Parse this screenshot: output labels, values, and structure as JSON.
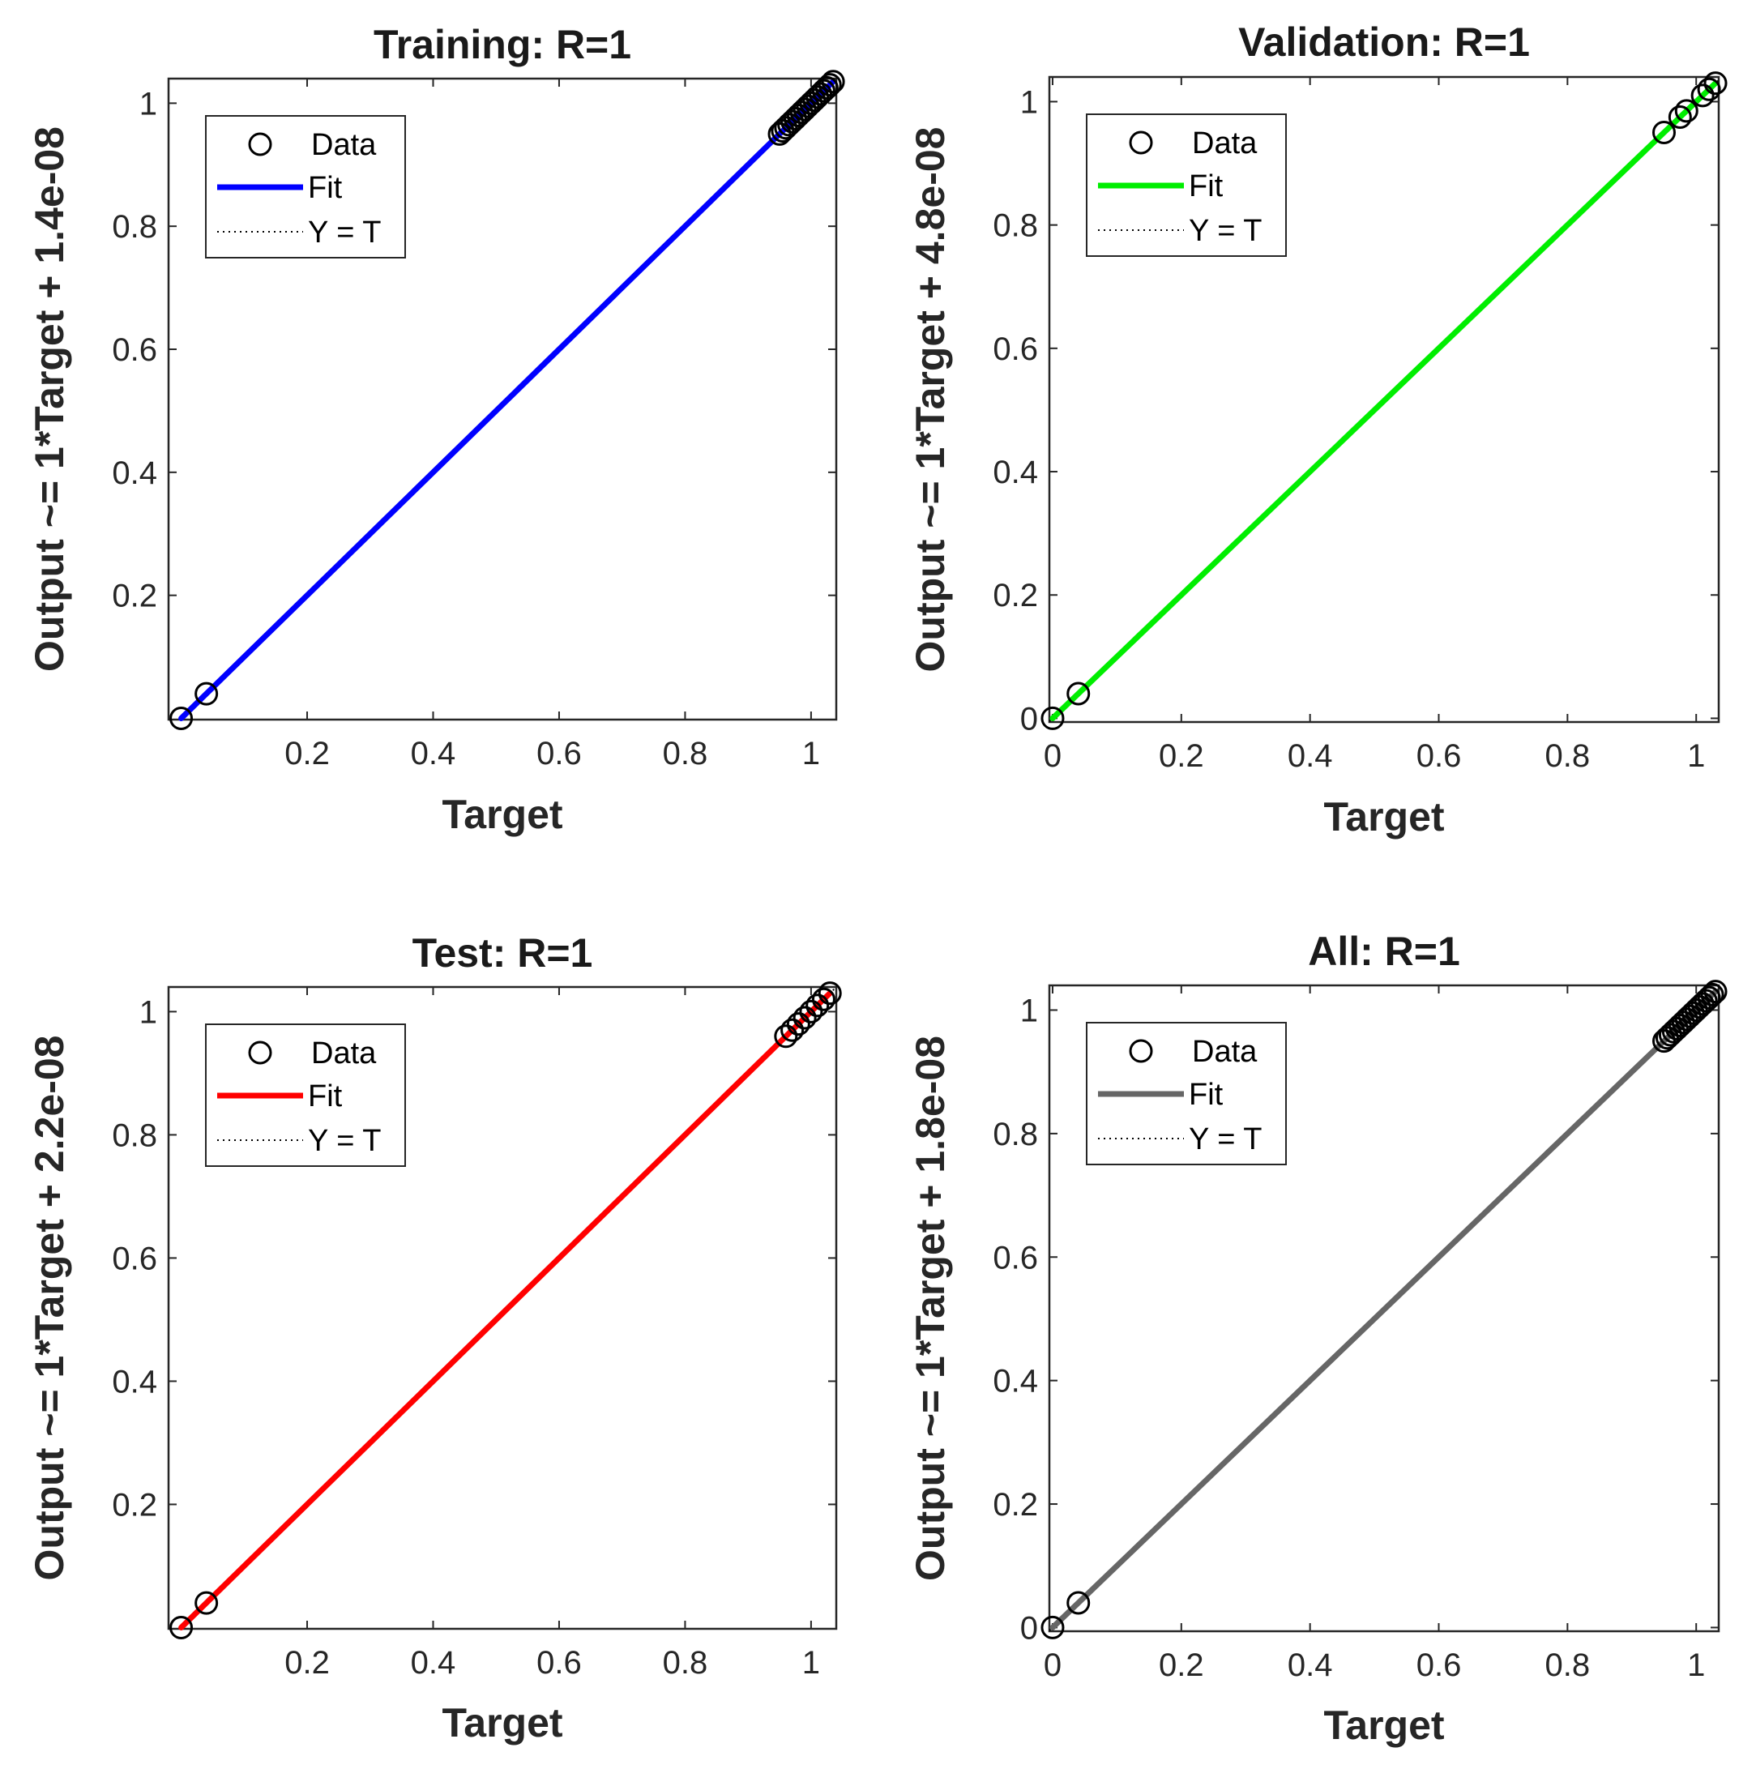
{
  "chart_data": [
    {
      "type": "scatter",
      "title": "Training: R=1",
      "xlabel": "Target",
      "ylabel": "Output ~= 1*Target + 1.4e-08",
      "xlim": [
        -0.02,
        1.04
      ],
      "ylim": [
        -0.002,
        1.04
      ],
      "xticks": [
        0.2,
        0.4,
        0.6,
        0.8,
        1
      ],
      "xtick_labels": [
        "0.2",
        "0.4",
        "0.6",
        "0.8",
        "1"
      ],
      "yticks": [
        0.2,
        0.4,
        0.6,
        0.8,
        1
      ],
      "ytick_labels": [
        "0.2",
        "0.4",
        "0.6",
        "0.8",
        "1"
      ],
      "fit_color": "#0000ff",
      "legend": {
        "position": "top-left",
        "entries": [
          "Data",
          "Fit",
          "Y = T"
        ]
      },
      "fit": {
        "slope": 1,
        "intercept": 1.4e-08
      },
      "points": {
        "x": [
          0,
          0.04,
          0.95,
          0.955,
          0.96,
          0.965,
          0.97,
          0.975,
          0.98,
          0.985,
          0.99,
          0.995,
          1.0,
          1.005,
          1.01,
          1.015,
          1.02,
          1.025,
          1.03,
          1.035
        ],
        "y": [
          0,
          0.04,
          0.95,
          0.955,
          0.96,
          0.965,
          0.97,
          0.975,
          0.98,
          0.985,
          0.99,
          0.995,
          1.0,
          1.005,
          1.01,
          1.015,
          1.02,
          1.025,
          1.03,
          1.035
        ]
      }
    },
    {
      "type": "scatter",
      "title": "Validation: R=1",
      "xlabel": "Target",
      "ylabel": "Output ~= 1*Target + 4.8e-08",
      "xlim": [
        -0.005,
        1.035
      ],
      "ylim": [
        -0.006,
        1.04
      ],
      "xticks": [
        0,
        0.2,
        0.4,
        0.6,
        0.8,
        1
      ],
      "xtick_labels": [
        "0",
        "0.2",
        "0.4",
        "0.6",
        "0.8",
        "1"
      ],
      "yticks": [
        0,
        0.2,
        0.4,
        0.6,
        0.8,
        1
      ],
      "ytick_labels": [
        "0",
        "0.2",
        "0.4",
        "0.6",
        "0.8",
        "1"
      ],
      "fit_color": "#00ee00",
      "legend": {
        "position": "top-left",
        "entries": [
          "Data",
          "Fit",
          "Y = T"
        ]
      },
      "fit": {
        "slope": 1,
        "intercept": 4.8e-08
      },
      "points": {
        "x": [
          0,
          0.04,
          0.95,
          0.975,
          0.985,
          1.01,
          1.02,
          1.03
        ],
        "y": [
          0,
          0.04,
          0.95,
          0.975,
          0.985,
          1.01,
          1.02,
          1.03
        ]
      }
    },
    {
      "type": "scatter",
      "title": "Test: R=1",
      "xlabel": "Target",
      "ylabel": "Output ~= 1*Target + 2.2e-08",
      "xlim": [
        -0.02,
        1.04
      ],
      "ylim": [
        -0.002,
        1.04
      ],
      "xticks": [
        0.2,
        0.4,
        0.6,
        0.8,
        1
      ],
      "xtick_labels": [
        "0.2",
        "0.4",
        "0.6",
        "0.8",
        "1"
      ],
      "yticks": [
        0.2,
        0.4,
        0.6,
        0.8,
        1
      ],
      "ytick_labels": [
        "0.2",
        "0.4",
        "0.6",
        "0.8",
        "1"
      ],
      "fit_color": "#ff0000",
      "legend": {
        "position": "top-left",
        "entries": [
          "Data",
          "Fit",
          "Y = T"
        ]
      },
      "fit": {
        "slope": 1,
        "intercept": 2.2e-08
      },
      "points": {
        "x": [
          0,
          0.04,
          0.96,
          0.97,
          0.98,
          0.99,
          1.0,
          1.01,
          1.02,
          1.03
        ],
        "y": [
          0,
          0.04,
          0.96,
          0.97,
          0.98,
          0.99,
          1.0,
          1.01,
          1.02,
          1.03
        ]
      }
    },
    {
      "type": "scatter",
      "title": "All: R=1",
      "xlabel": "Target",
      "ylabel": "Output ~= 1*Target + 1.8e-08",
      "xlim": [
        -0.005,
        1.035
      ],
      "ylim": [
        -0.006,
        1.04
      ],
      "xticks": [
        0,
        0.2,
        0.4,
        0.6,
        0.8,
        1
      ],
      "xtick_labels": [
        "0",
        "0.2",
        "0.4",
        "0.6",
        "0.8",
        "1"
      ],
      "yticks": [
        0,
        0.2,
        0.4,
        0.6,
        0.8,
        1
      ],
      "ytick_labels": [
        "0",
        "0.2",
        "0.4",
        "0.6",
        "0.8",
        "1"
      ],
      "fit_color": "#666666",
      "legend": {
        "position": "top-left",
        "entries": [
          "Data",
          "Fit",
          "Y = T"
        ]
      },
      "fit": {
        "slope": 1,
        "intercept": 1.8e-08
      },
      "points": {
        "x": [
          0,
          0.04,
          0.95,
          0.955,
          0.96,
          0.965,
          0.97,
          0.975,
          0.98,
          0.985,
          0.99,
          0.995,
          1.0,
          1.005,
          1.01,
          1.015,
          1.02,
          1.025,
          1.03
        ],
        "y": [
          0,
          0.04,
          0.95,
          0.955,
          0.96,
          0.965,
          0.97,
          0.975,
          0.98,
          0.985,
          0.99,
          0.995,
          1.0,
          1.005,
          1.01,
          1.015,
          1.02,
          1.025,
          1.03
        ]
      }
    }
  ]
}
